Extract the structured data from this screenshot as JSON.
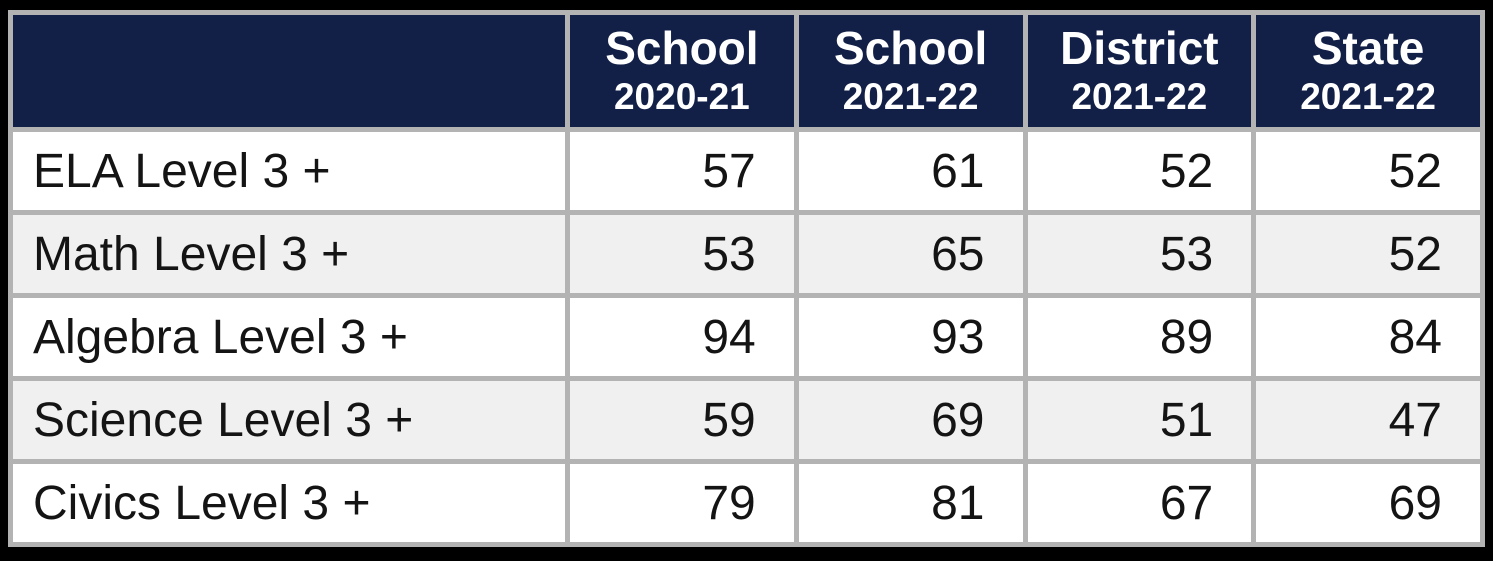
{
  "table": {
    "header": {
      "row_label_header": "",
      "columns": [
        {
          "line1": "School",
          "line2": "2020-21"
        },
        {
          "line1": "School",
          "line2": "2021-22"
        },
        {
          "line1": "District",
          "line2": "2021-22"
        },
        {
          "line1": "State",
          "line2": "2021-22"
        }
      ]
    },
    "rows": [
      {
        "label": "ELA Level 3 +",
        "values": [
          57,
          61,
          52,
          52
        ]
      },
      {
        "label": "Math Level 3 +",
        "values": [
          53,
          65,
          53,
          52
        ]
      },
      {
        "label": "Algebra Level 3 +",
        "values": [
          94,
          93,
          89,
          84
        ]
      },
      {
        "label": "Science Level 3 +",
        "values": [
          59,
          69,
          51,
          47
        ]
      },
      {
        "label": "Civics Level 3 +",
        "values": [
          79,
          81,
          67,
          69
        ]
      }
    ]
  },
  "chart_data": {
    "type": "table",
    "title": "",
    "categories": [
      "ELA Level 3 +",
      "Math Level 3 +",
      "Algebra Level 3 +",
      "Science Level 3 +",
      "Civics Level 3 +"
    ],
    "series": [
      {
        "name": "School 2020-21",
        "values": [
          57,
          53,
          94,
          59,
          79
        ]
      },
      {
        "name": "School 2021-22",
        "values": [
          61,
          65,
          93,
          69,
          81
        ]
      },
      {
        "name": "District 2021-22",
        "values": [
          52,
          53,
          89,
          51,
          67
        ]
      },
      {
        "name": "State 2021-22",
        "values": [
          52,
          52,
          84,
          47,
          69
        ]
      }
    ]
  },
  "colors": {
    "header_background": "#121f47",
    "header_text": "#ffffff",
    "grid_line": "#b3b3b3",
    "row_white": "#ffffff",
    "row_alt": "#f0f0f0",
    "body_text": "#141414",
    "frame_background": "#000000"
  }
}
